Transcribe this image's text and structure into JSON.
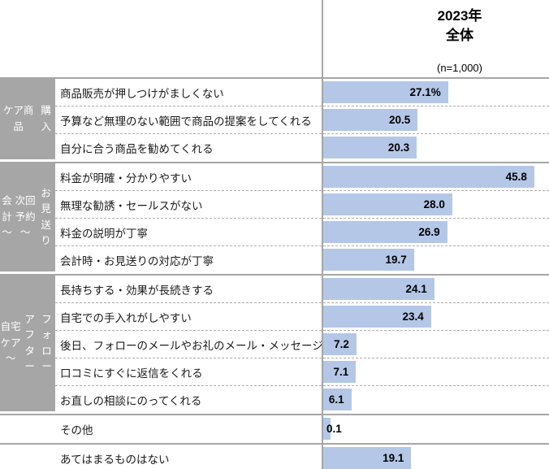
{
  "header": {
    "title_line1": "2023年",
    "title_line2": "全体",
    "sample_label": "(n=1,000)"
  },
  "chart_data": {
    "type": "bar",
    "orientation": "horizontal",
    "title": "2023年 全体",
    "sample_label": "(n=1,000)",
    "xlim": [
      0,
      49
    ],
    "grid": "off",
    "bar_color": "#b4c7e7",
    "category_bg_color": "#a6a6a6",
    "separator_color": "#a6a6a6",
    "groups": [
      {
        "category_lines": [
          "ケア商品",
          "購入"
        ],
        "items": [
          {
            "label": "商品販売が押しつけがましくない",
            "value": 27.1,
            "display": "27.1%"
          },
          {
            "label": "予算など無理のない範囲で商品の提案をしてくれる",
            "value": 20.5,
            "display": "20.5"
          },
          {
            "label": "自分に合う商品を勧めてくれる",
            "value": 20.3,
            "display": "20.3"
          }
        ]
      },
      {
        "category_lines": [
          "会計～",
          "次回予約～",
          "お見送り"
        ],
        "items": [
          {
            "label": "料金が明確・分かりやすい",
            "value": 45.8,
            "display": "45.8"
          },
          {
            "label": "無理な勧誘・セールスがない",
            "value": 28.0,
            "display": "28.0"
          },
          {
            "label": "料金の説明が丁寧",
            "value": 26.9,
            "display": "26.9"
          },
          {
            "label": "会計時・お見送りの対応が丁寧",
            "value": 19.7,
            "display": "19.7"
          }
        ]
      },
      {
        "category_lines": [
          "自宅ケア～",
          "アフター",
          "フォロー"
        ],
        "items": [
          {
            "label": "長持ちする・効果が長続きする",
            "value": 24.1,
            "display": "24.1"
          },
          {
            "label": "自宅での手入れがしやすい",
            "value": 23.4,
            "display": "23.4"
          },
          {
            "label": "後日、フォローのメールやお礼のメール・メッセージをくれる",
            "value": 7.2,
            "display": "7.2"
          },
          {
            "label": "口コミにすぐに返信をくれる",
            "value": 7.1,
            "display": "7.1"
          },
          {
            "label": "お直しの相談にのってくれる",
            "value": 6.1,
            "display": "6.1"
          }
        ]
      },
      {
        "category_lines": [],
        "items": [
          {
            "label": "その他",
            "value": 0.1,
            "display": "0.1"
          }
        ]
      },
      {
        "category_lines": [],
        "items": [
          {
            "label": "あてはまるものはない",
            "value": 19.1,
            "display": "19.1"
          }
        ]
      }
    ]
  }
}
